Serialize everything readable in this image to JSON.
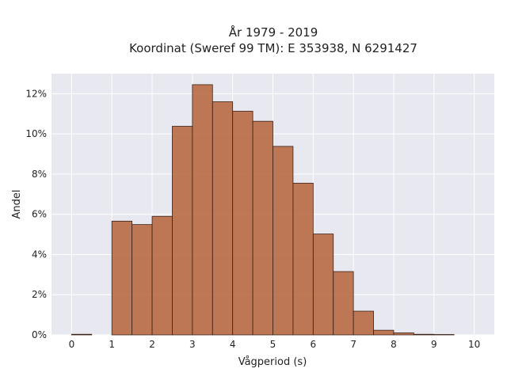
{
  "chart_data": {
    "type": "bar",
    "title_line1": "År 1979 - 2019",
    "title_line2": "Koordinat (Sweref 99 TM): E 353938, N 6291427",
    "xlabel": "Vågperiod (s)",
    "ylabel": "Andel",
    "xlim": [
      -0.5,
      10.5
    ],
    "ylim": [
      0,
      0.13
    ],
    "x_ticks": [
      0,
      1,
      2,
      3,
      4,
      5,
      6,
      7,
      8,
      9,
      10
    ],
    "x_tick_labels": [
      "0",
      "1",
      "2",
      "3",
      "4",
      "5",
      "6",
      "7",
      "8",
      "9",
      "10"
    ],
    "y_ticks": [
      0,
      0.02,
      0.04,
      0.06,
      0.08,
      0.1,
      0.12
    ],
    "y_tick_labels": [
      "0%",
      "2%",
      "4%",
      "6%",
      "8%",
      "10%",
      "12%"
    ],
    "grid": true,
    "bin_width": 0.5,
    "bins": [
      {
        "x0": 0.0,
        "value": 0.0003
      },
      {
        "x0": 1.0,
        "value": 0.0566
      },
      {
        "x0": 1.5,
        "value": 0.0549
      },
      {
        "x0": 2.0,
        "value": 0.059
      },
      {
        "x0": 2.5,
        "value": 0.1038
      },
      {
        "x0": 3.0,
        "value": 0.1245
      },
      {
        "x0": 3.5,
        "value": 0.116
      },
      {
        "x0": 4.0,
        "value": 0.1113
      },
      {
        "x0": 4.5,
        "value": 0.1063
      },
      {
        "x0": 5.0,
        "value": 0.0938
      },
      {
        "x0": 5.5,
        "value": 0.0755
      },
      {
        "x0": 6.0,
        "value": 0.0502
      },
      {
        "x0": 6.5,
        "value": 0.0315
      },
      {
        "x0": 7.0,
        "value": 0.0118
      },
      {
        "x0": 7.5,
        "value": 0.0023
      },
      {
        "x0": 8.0,
        "value": 0.001
      },
      {
        "x0": 8.5,
        "value": 0.0003
      },
      {
        "x0": 9.0,
        "value": 0.0002
      }
    ],
    "colors": {
      "bar_fill": "#b5633a",
      "bar_edge": "#3b2116",
      "plot_bg": "#e8e8f0",
      "grid": "#ffffff"
    }
  }
}
